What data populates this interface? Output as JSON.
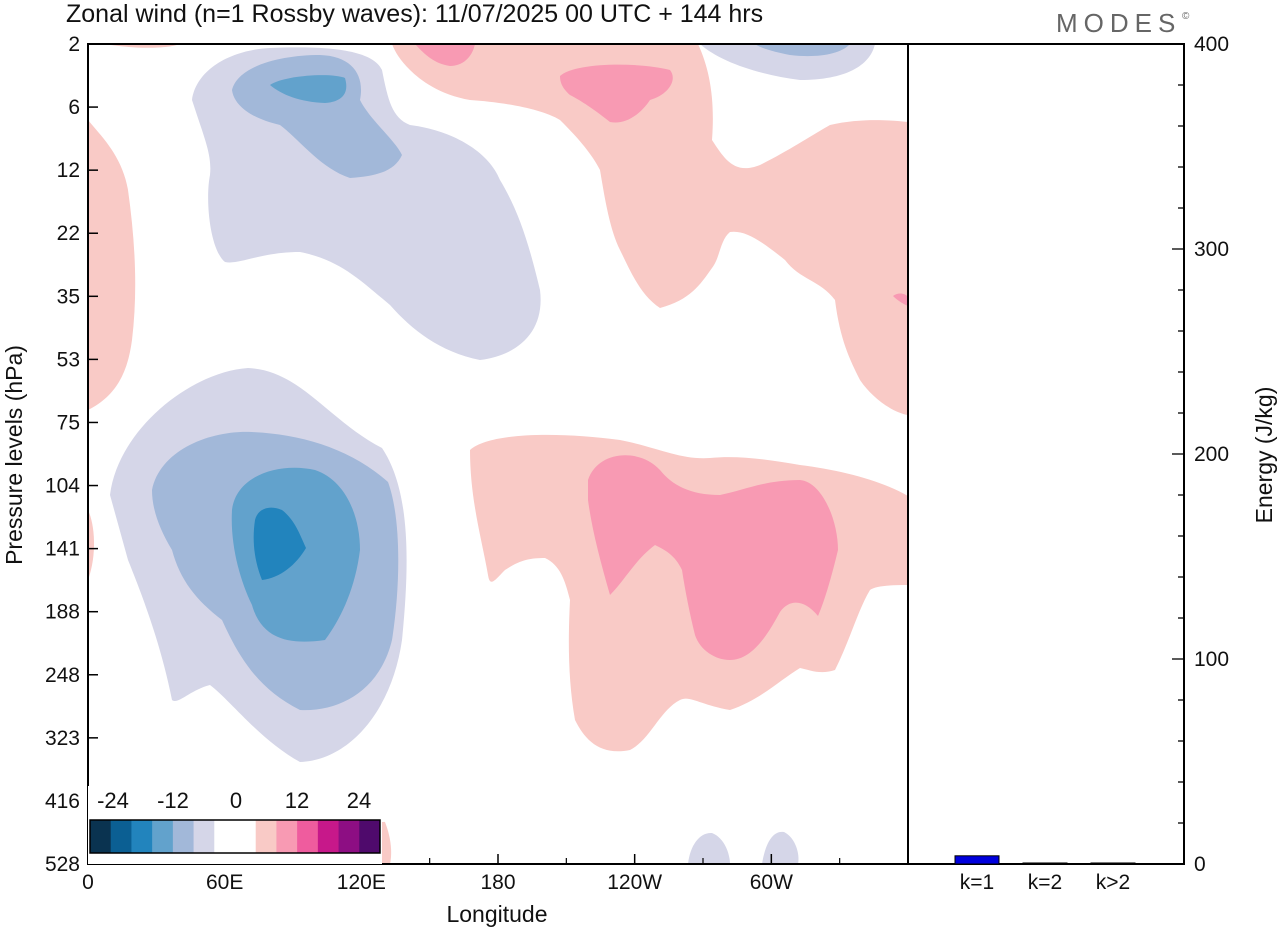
{
  "page": {
    "title": "Zonal wind (n=1 Rossby waves):  11/07/2025  00 UTC  + 144 hrs",
    "logo": "MODES",
    "logo_mark": "©"
  },
  "chart_data": [
    {
      "type": "heatmap",
      "title": "Zonal wind (n=1 Rossby waves):  11/07/2025  00 UTC  + 144 hrs",
      "xlabel": "Longitude",
      "ylabel": "Pressure levels (hPa)",
      "x_ticks": [
        "0",
        "60E",
        "120E",
        "180",
        "120W",
        "60W"
      ],
      "x_tick_values": [
        0,
        60,
        120,
        180,
        240,
        300
      ],
      "xlim": [
        0,
        360
      ],
      "y_ticks": [
        "2",
        "6",
        "12",
        "22",
        "35",
        "53",
        "75",
        "104",
        "141",
        "188",
        "248",
        "323",
        "416",
        "528"
      ],
      "colorbar": {
        "labels": [
          "-24",
          "-12",
          "0",
          "12",
          "24"
        ],
        "colors": [
          "#0a3350",
          "#0b5f93",
          "#2284bd",
          "#62a2cc",
          "#a2b8d9",
          "#d5d6e8",
          "#ffffff",
          "#ffffff",
          "#f9cac6",
          "#f89ab3",
          "#ef5c9e",
          "#c7188a",
          "#8d0e83",
          "#4f0a6c"
        ]
      },
      "regions": [
        {
          "name": "easterly-upper-core",
          "sign": "negative",
          "peak": -15,
          "center_lon": 80,
          "center_level": "6"
        },
        {
          "name": "easterly-strat-plume",
          "sign": "negative",
          "peak": -5,
          "center_lon": 110,
          "center_level": "22"
        },
        {
          "name": "easterly-lower-core",
          "sign": "negative",
          "peak": -20,
          "center_lon": 80,
          "center_level": "141"
        },
        {
          "name": "westerly-upper",
          "sign": "positive",
          "peak": 10,
          "center_lon": 235,
          "center_level": "6"
        },
        {
          "name": "westerly-east",
          "sign": "positive",
          "peak": 4,
          "center_lon": 320,
          "center_level": "35"
        },
        {
          "name": "westerly-lower-core",
          "sign": "positive",
          "peak": 10,
          "center_lon": 270,
          "center_level": "141"
        }
      ]
    },
    {
      "type": "bar",
      "ylabel": "Energy (J/kg)",
      "categories": [
        "k=1",
        "k=2",
        "k>2"
      ],
      "values": [
        4,
        0.5,
        0.5
      ],
      "ylim": [
        0,
        400
      ],
      "y_ticks": [
        "0",
        "100",
        "200",
        "300",
        "400"
      ],
      "bar_colors": [
        "#0000dd",
        "#555555",
        "#555555"
      ]
    }
  ]
}
